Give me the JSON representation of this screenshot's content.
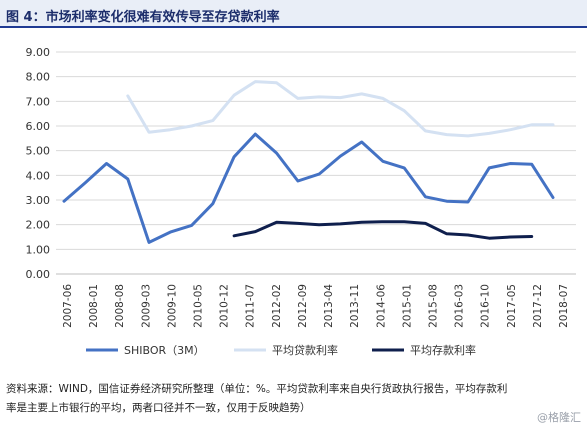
{
  "header": {
    "title": "图 4：市场利率变化很难有效传导至存贷款利率"
  },
  "footer": {
    "source_line1": "资料来源：WIND，国信证券经济研究所整理（单位：%。平均贷款利率来自央行货政执行报告，平均存款利",
    "source_line2": "率是主要上市银行的平均，两者口径并不一致，仅用于反映趋势）",
    "watermark": "@格隆汇"
  },
  "chart_data": {
    "type": "line",
    "title": "",
    "xlabel": "",
    "ylabel": "",
    "ylim": [
      0,
      9
    ],
    "y_ticks": [
      "0.00",
      "1.00",
      "2.00",
      "3.00",
      "4.00",
      "5.00",
      "6.00",
      "7.00",
      "8.00",
      "9.00"
    ],
    "x_labels": [
      "2007-06",
      "2008-01",
      "2008-08",
      "2009-03",
      "2009-10",
      "2010-05",
      "2010-12",
      "2011-07",
      "2012-02",
      "2012-09",
      "2013-04",
      "2013-11",
      "2014-06",
      "2015-01",
      "2015-08",
      "2016-03",
      "2016-10",
      "2017-05",
      "2017-12",
      "2018-07"
    ],
    "legend_position": "bottom",
    "series": [
      {
        "name": "SHIBOR（3M）",
        "color": "#4472c4",
        "values": [
          2.95,
          3.7,
          4.48,
          3.85,
          1.28,
          1.7,
          1.97,
          2.85,
          4.75,
          5.67,
          4.9,
          3.77,
          4.05,
          4.78,
          5.35,
          4.57,
          4.3,
          3.13,
          2.95,
          2.92,
          4.3,
          4.48,
          4.45,
          3.1
        ]
      },
      {
        "name": "平均贷款利率",
        "color": "#d4e1f2",
        "values": [
          null,
          null,
          null,
          7.22,
          5.75,
          5.85,
          6.0,
          6.22,
          7.25,
          7.8,
          7.75,
          7.12,
          7.18,
          7.15,
          7.3,
          7.12,
          6.62,
          5.8,
          5.65,
          5.6,
          5.7,
          5.85,
          6.05,
          6.05
        ]
      },
      {
        "name": "平均存款利率",
        "color": "#0f1f4d",
        "values": [
          null,
          null,
          null,
          null,
          null,
          null,
          null,
          null,
          1.55,
          1.72,
          2.1,
          2.05,
          2.0,
          2.03,
          2.1,
          2.12,
          2.12,
          2.05,
          1.63,
          1.58,
          1.45,
          1.5,
          1.52,
          null
        ]
      }
    ]
  }
}
